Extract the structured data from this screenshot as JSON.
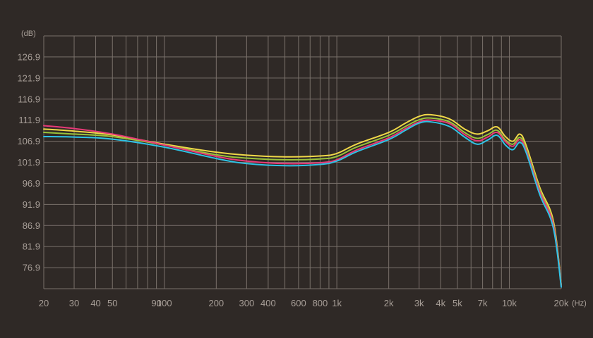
{
  "chart_data": {
    "type": "line",
    "x_scale": "log",
    "xlim": [
      20,
      20000
    ],
    "ylim": [
      71.9,
      131.9
    ],
    "grid": true,
    "legend": "none",
    "y_unit": "(dB)",
    "x_unit": "(Hz)",
    "y_ticks": [
      "126.9",
      "121.9",
      "116.9",
      "111.9",
      "106.9",
      "101.9",
      "96.9",
      "91.9",
      "86.9",
      "81.9",
      "76.9"
    ],
    "x_tick_labels": [
      {
        "x": 20,
        "label": "20"
      },
      {
        "x": 30,
        "label": "30"
      },
      {
        "x": 40,
        "label": "40"
      },
      {
        "x": 50,
        "label": "50"
      },
      {
        "x": 90,
        "label": "90"
      },
      {
        "x": 100,
        "label": "100"
      },
      {
        "x": 200,
        "label": "200"
      },
      {
        "x": 300,
        "label": "300"
      },
      {
        "x": 400,
        "label": "400"
      },
      {
        "x": 600,
        "label": "600"
      },
      {
        "x": 800,
        "label": "800"
      },
      {
        "x": 1000,
        "label": "1k"
      },
      {
        "x": 2000,
        "label": "2k"
      },
      {
        "x": 3000,
        "label": "3k"
      },
      {
        "x": 4000,
        "label": "4k"
      },
      {
        "x": 5000,
        "label": "5k"
      },
      {
        "x": 7000,
        "label": "7k"
      },
      {
        "x": 10000,
        "label": "10k"
      },
      {
        "x": 20000,
        "label": "20k"
      }
    ],
    "x_gridlines": [
      20,
      30,
      40,
      50,
      60,
      70,
      80,
      90,
      100,
      200,
      300,
      400,
      500,
      600,
      700,
      800,
      900,
      1000,
      2000,
      3000,
      4000,
      5000,
      6000,
      7000,
      8000,
      9000,
      10000,
      20000
    ],
    "x": [
      20,
      30,
      50,
      100,
      200,
      300,
      500,
      800,
      1000,
      1300,
      2000,
      2500,
      3000,
      3500,
      4500,
      5500,
      6500,
      7500,
      8500,
      9500,
      10500,
      11500,
      12500,
      15000,
      18000,
      20000
    ],
    "series": [
      {
        "color": "#f0d848",
        "values": [
          109.8,
          109.3,
          108.4,
          106.2,
          104.3,
          103.6,
          103.2,
          103.4,
          104.0,
          106.2,
          109.0,
          111.2,
          112.8,
          113.2,
          112.2,
          109.8,
          108.6,
          109.4,
          110.3,
          108.0,
          106.9,
          108.6,
          106.0,
          96.0,
          88.0,
          72.8
        ]
      },
      {
        "color": "#9bc23a",
        "values": [
          109.0,
          108.6,
          108.0,
          106.0,
          103.7,
          102.9,
          102.5,
          102.7,
          103.3,
          105.5,
          108.3,
          110.4,
          112.0,
          112.4,
          111.5,
          109.0,
          107.6,
          108.5,
          109.5,
          107.2,
          106.2,
          107.8,
          105.3,
          95.5,
          87.3,
          72.6
        ]
      },
      {
        "color": "#e83a78",
        "values": [
          110.6,
          109.9,
          108.6,
          106.0,
          103.3,
          102.2,
          101.6,
          101.8,
          102.5,
          104.8,
          107.7,
          109.9,
          111.5,
          111.9,
          111.1,
          108.5,
          107.0,
          107.9,
          109.0,
          106.8,
          105.7,
          107.3,
          104.8,
          95.0,
          87.0,
          72.5
        ]
      },
      {
        "color": "#2ec3e6",
        "values": [
          108.0,
          107.9,
          107.4,
          105.5,
          102.8,
          101.6,
          101.1,
          101.4,
          102.2,
          104.4,
          107.3,
          109.5,
          111.2,
          111.5,
          110.4,
          107.9,
          106.2,
          107.2,
          108.3,
          106.0,
          104.9,
          106.6,
          104.3,
          94.3,
          86.3,
          72.3
        ]
      }
    ]
  }
}
